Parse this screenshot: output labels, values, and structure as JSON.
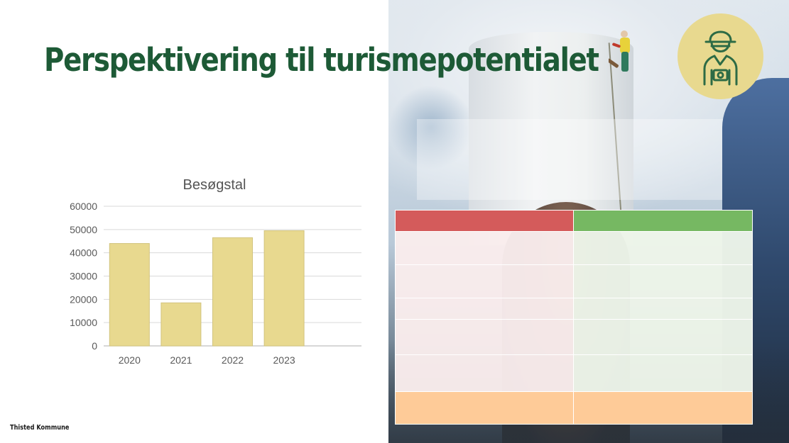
{
  "slide": {
    "title": "Perspektivering til turismepotentialet",
    "footer": "Thisted Kommune"
  },
  "badge": {
    "icon": "tourist-icon",
    "background": "#e8d98f",
    "stroke": "#2d6b45"
  },
  "colors": {
    "title": "#1d5a36",
    "table_header_left": "#d45b5b",
    "table_header_right": "#76b862",
    "table_footer": "#fecb98",
    "bar_fill": "#e8d98f"
  },
  "chart_data": {
    "type": "bar",
    "title": "Besøgstal",
    "categories": [
      "2020",
      "2021",
      "2022",
      "2023"
    ],
    "values": [
      44000,
      18500,
      46500,
      49500
    ],
    "ylim": [
      0,
      60000
    ],
    "yticks": [
      "0",
      "10000",
      "20000",
      "30000",
      "40000",
      "50000",
      "60000"
    ],
    "grid": true,
    "legend": "none"
  },
  "table": {
    "header": [
      "",
      ""
    ],
    "rows": [
      [
        "",
        ""
      ],
      [
        "",
        ""
      ],
      [
        "",
        ""
      ],
      [
        "",
        ""
      ],
      [
        "",
        ""
      ]
    ],
    "footer": [
      "",
      ""
    ]
  }
}
